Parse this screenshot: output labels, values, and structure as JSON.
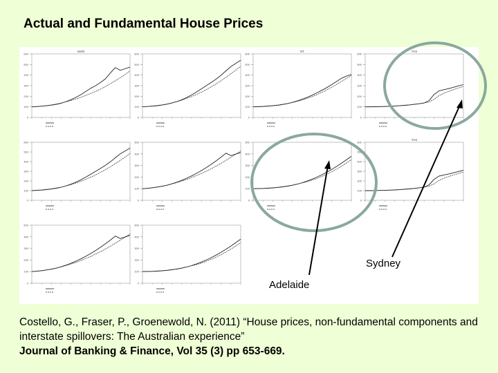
{
  "slide": {
    "title": "Actual and Fundamental House Prices"
  },
  "annotations": {
    "sydney": "Sydney",
    "adelaide": "Adelaide"
  },
  "citation": {
    "text": "Costello, G., Fraser, P., Groenewold, N. (2011) “House prices, non-fundamental components and interstate spillovers: The Australian experience”",
    "journal": "Journal of Banking & Finance, Vol 35 (3) pp 653-669."
  },
  "colors": {
    "slide_background": "#efffd6",
    "highlight_circle": "#8aa8a0",
    "series_line": "#222222"
  },
  "chart_data": [
    {
      "type": "line",
      "panel_label": "NSW",
      "ylim": [
        0,
        600
      ],
      "y_ticks": [
        0,
        100,
        200,
        300,
        400,
        500,
        600
      ],
      "x": [
        0,
        1,
        2,
        3,
        4,
        5,
        6,
        7,
        8,
        9,
        10,
        11,
        12,
        13,
        14,
        15,
        16,
        17,
        18,
        19,
        20
      ],
      "series": [
        {
          "values": [
            100,
            102,
            106,
            110,
            116,
            124,
            134,
            150,
            168,
            190,
            215,
            245,
            275,
            300,
            330,
            365,
            420,
            470,
            445,
            460,
            475
          ]
        },
        {
          "values": [
            100,
            103,
            107,
            112,
            118,
            126,
            136,
            148,
            160,
            174,
            190,
            208,
            226,
            246,
            268,
            292,
            318,
            346,
            375,
            405,
            440
          ]
        }
      ]
    },
    {
      "type": "line",
      "panel_label": "",
      "ylim": [
        0,
        600
      ],
      "y_ticks": [
        0,
        100,
        200,
        300,
        400,
        500,
        600
      ],
      "x": [
        0,
        1,
        2,
        3,
        4,
        5,
        6,
        7,
        8,
        9,
        10,
        11,
        12,
        13,
        14,
        15,
        16,
        17,
        18,
        19,
        20
      ],
      "series": [
        {
          "values": [
            100,
            103,
            106,
            111,
            117,
            125,
            136,
            150,
            167,
            188,
            212,
            240,
            270,
            300,
            330,
            362,
            398,
            440,
            480,
            510,
            540
          ]
        },
        {
          "values": [
            100,
            104,
            108,
            113,
            119,
            127,
            137,
            149,
            163,
            179,
            197,
            217,
            239,
            263,
            289,
            317,
            347,
            379,
            412,
            447,
            484
          ]
        }
      ]
    },
    {
      "type": "line",
      "panel_label": "NT",
      "ylim": [
        0,
        600
      ],
      "y_ticks": [
        0,
        100,
        200,
        300,
        400,
        500,
        600
      ],
      "x": [
        0,
        1,
        2,
        3,
        4,
        5,
        6,
        7,
        8,
        9,
        10,
        11,
        12,
        13,
        14,
        15,
        16,
        17,
        18,
        19,
        20
      ],
      "series": [
        {
          "values": [
            100,
            101,
            103,
            106,
            110,
            115,
            122,
            131,
            142,
            156,
            172,
            190,
            210,
            232,
            256,
            282,
            310,
            340,
            370,
            390,
            405
          ]
        },
        {
          "values": [
            100,
            102,
            105,
            108,
            112,
            117,
            124,
            132,
            141,
            152,
            165,
            180,
            197,
            216,
            237,
            260,
            285,
            312,
            340,
            368,
            395
          ]
        }
      ]
    },
    {
      "type": "line",
      "panel_label": "TAS",
      "ylim": [
        0,
        600
      ],
      "y_ticks": [
        0,
        100,
        200,
        300,
        400,
        500,
        600
      ],
      "x": [
        0,
        1,
        2,
        3,
        4,
        5,
        6,
        7,
        8,
        9,
        10,
        11,
        12,
        13,
        14,
        15,
        16,
        17,
        18,
        19,
        20
      ],
      "series": [
        {
          "values": [
            100,
            100,
            101,
            102,
            103,
            105,
            107,
            110,
            114,
            118,
            123,
            129,
            136,
            160,
            215,
            250,
            262,
            272,
            285,
            298,
            310
          ]
        },
        {
          "values": [
            100,
            101,
            102,
            103,
            104,
            106,
            108,
            111,
            115,
            119,
            124,
            130,
            137,
            145,
            170,
            205,
            228,
            246,
            262,
            278,
            292
          ]
        }
      ]
    },
    {
      "type": "line",
      "panel_label": "",
      "ylim": [
        0,
        500
      ],
      "y_ticks": [
        0,
        100,
        200,
        300,
        400,
        500
      ],
      "x": [
        0,
        1,
        2,
        3,
        4,
        5,
        6,
        7,
        8,
        9,
        10,
        11,
        12,
        13,
        14,
        15,
        16,
        17,
        18,
        19,
        20
      ],
      "series": [
        {
          "values": [
            100,
            103,
            108,
            114,
            121,
            130,
            142,
            156,
            172,
            190,
            210,
            232,
            256,
            282,
            310,
            340,
            372,
            406,
            385,
            398,
            412
          ]
        },
        {
          "values": [
            100,
            104,
            109,
            115,
            122,
            131,
            141,
            153,
            166,
            180,
            196,
            213,
            231,
            251,
            272,
            295,
            319,
            344,
            370,
            397,
            425
          ]
        }
      ]
    },
    {
      "type": "line",
      "panel_label": "",
      "ylim": [
        0,
        500
      ],
      "y_ticks": [
        0,
        100,
        200,
        300,
        400,
        500
      ],
      "x": [
        0,
        1,
        2,
        3,
        4,
        5,
        6,
        7,
        8,
        9,
        10,
        11,
        12,
        13,
        14,
        15,
        16,
        17,
        18,
        19,
        20
      ],
      "series": [
        {
          "values": [
            100,
            101,
            102,
            104,
            107,
            111,
            116,
            122,
            130,
            140,
            152,
            166,
            182,
            200,
            220,
            242,
            266,
            292,
            320,
            350,
            380
          ]
        },
        {
          "values": [
            100,
            101,
            103,
            105,
            108,
            112,
            117,
            123,
            131,
            140,
            150,
            161,
            174,
            189,
            206,
            225,
            246,
            269,
            294,
            321,
            350
          ]
        }
      ]
    }
  ]
}
